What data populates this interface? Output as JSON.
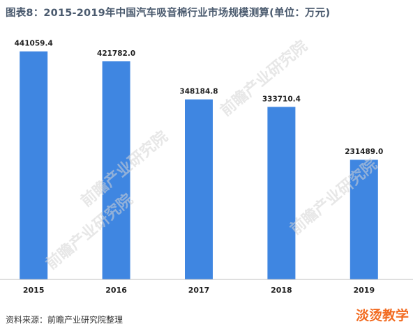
{
  "chart_data": {
    "type": "bar",
    "title": "图表8：2015-2019年中国汽车吸音棉行业市场规模测算(单位：万元)",
    "categories": [
      "2015",
      "2016",
      "2017",
      "2018",
      "2019"
    ],
    "values": [
      441059.4,
      421782.0,
      348184.8,
      333710.4,
      231489.0
    ],
    "value_labels": [
      "441059.4",
      "421782.0",
      "348184.8",
      "333710.4",
      "231489.0"
    ],
    "ylim": [
      0,
      500000
    ],
    "grid": false,
    "bar_color": "#3f86e1",
    "axis_color": "#bfbfbf"
  },
  "source": "资料来源：前瞻产业研究院整理",
  "watermarks": {
    "text": "前瞻产业研究院",
    "corner": "淡烫教学"
  }
}
